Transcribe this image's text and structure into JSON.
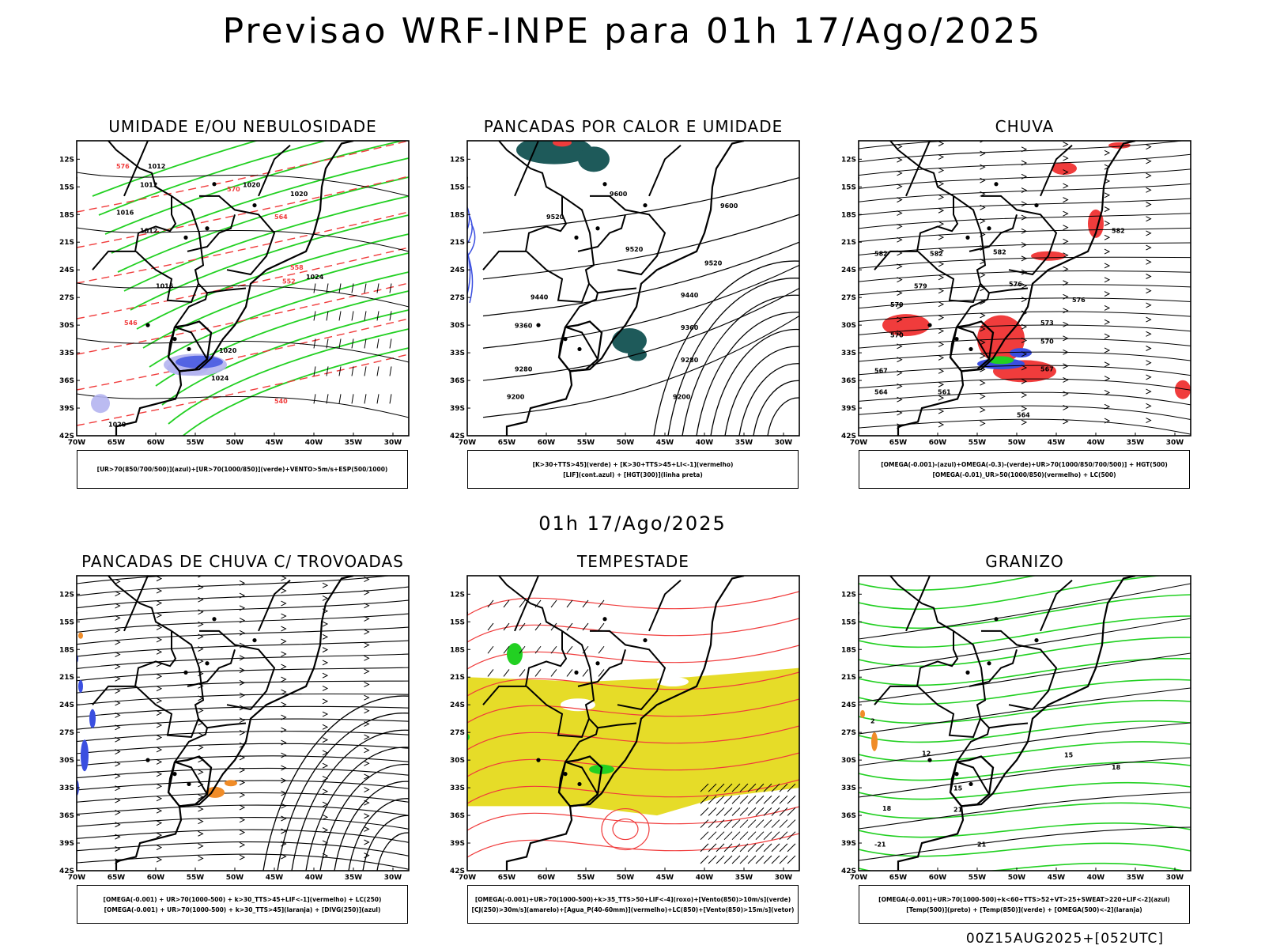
{
  "main_title": "Previsao WRF-INPE  para 01h 17/Ago/2025",
  "mid_title": "01h 17/Ago/2025",
  "footer": "00Z15AUG2025+[052UTC]",
  "axes": {
    "lat_labels": [
      "12S",
      "15S",
      "18S",
      "21S",
      "24S",
      "27S",
      "30S",
      "33S",
      "36S",
      "39S",
      "42S"
    ],
    "lon_labels": [
      "70W",
      "65W",
      "60W",
      "55W",
      "50W",
      "45W",
      "40W",
      "35W",
      "30W"
    ]
  },
  "colors": {
    "blue": "#3b4fe0",
    "green": "#22d022",
    "red": "#f03c3c",
    "yellow": "#e6dc28",
    "orange": "#f08c28",
    "teal": "#1e5a5a",
    "lavender": "#b4b4f0"
  },
  "panels": [
    {
      "title": "UMIDADE E/OU NEBULOSIDADE",
      "legend": [
        "[UR>70(850/700/500)](azul)+[UR>70(1000/850)](verde)+VENTO>5m/s+ESP(500/1000)"
      ],
      "contour_labels": [
        "1012",
        "1012",
        "1016",
        "1012",
        "1016",
        "1016",
        "1020",
        "1020",
        "1024",
        "1020",
        "1024",
        "1020",
        "576",
        "570",
        "564",
        "558",
        "552",
        "546",
        "540"
      ]
    },
    {
      "title": "PANCADAS POR CALOR E UMIDADE",
      "legend": [
        "[K>30+TTS>45](verde) + [K>30+TTS>45+LI<-1](vermelho)",
        "[LIF](cont.azul) + [HGT(300)](linha preta)"
      ],
      "contour_labels": [
        "9600",
        "9600",
        "9520",
        "9520",
        "9440",
        "9440",
        "9360",
        "9360",
        "9280",
        "9280",
        "9200",
        "9200",
        "9520"
      ]
    },
    {
      "title": "CHUVA",
      "legend": [
        "[OMEGA(-0.001)-(azul)+OMEGA(-0.3)-(verde)+UR>70(1000/850/700/500)] + HGT(500)",
        "[OMEGA(-0.01)_UR>50(1000/850)(vermelho) + LC(500)"
      ],
      "contour_labels": [
        "582",
        "582",
        "582",
        "582",
        "579",
        "576",
        "576",
        "573",
        "570",
        "570",
        "567",
        "567",
        "564",
        "564",
        "561",
        "579"
      ]
    },
    {
      "title": "PANCADAS DE CHUVA C/ TROVOADAS",
      "legend": [
        "[OMEGA(-0.001) + UR>70(1000-500) + k>30_TTS>45+LIF<-1](vermelho) + LC(250)",
        "[OMEGA(-0.001) + UR>70(1000-500) + k>30_TTS>45](laranja) + [DIVG(250)](azul)"
      ],
      "contour_labels": []
    },
    {
      "title": "TEMPESTADE",
      "legend": [
        "[OMEGA(-0.001)+UR>70(1000-500)+k>35_TTS>50+LIF<-4](roxo)+[Vento(850)>10m/s](verde)",
        "[CJ(250)>30m/s](amarelo)+[Agua_P(40-60mm)](vermelho)+LC(850)+[Vento(850)>15m/s](vetor)"
      ],
      "contour_labels": []
    },
    {
      "title": "GRANIZO",
      "legend": [
        "[OMEGA(-0.001)+UR>70(1000-500)+k<60+TTS>52+VT>25+SWEAT>220+LIF<-2](azul)",
        "[Temp(500)](preto) + [Temp(850)](verde) + [OMEGA(500)<-2](laranja)"
      ],
      "contour_labels": [
        "2",
        "12",
        "15",
        "18",
        "15",
        "18",
        "21",
        "21",
        "-21",
        "-21"
      ]
    }
  ]
}
